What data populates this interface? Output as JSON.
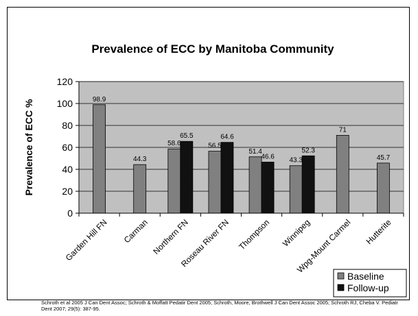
{
  "chart_data": {
    "type": "bar",
    "title": "Prevalence of ECC by Manitoba Community",
    "ylabel": "Prevalence of ECC %",
    "xlabel": "",
    "ylim": [
      0,
      120
    ],
    "yticks": [
      0,
      20,
      40,
      60,
      80,
      100,
      120
    ],
    "grid": true,
    "legend_position": "bottom-right",
    "categories": [
      "Garden Hill FN",
      "Carman",
      "Northern FN",
      "Roseau River FN",
      "Thompson",
      "Winnipeg",
      "Wpg-Mount Carmel",
      "Hutterite"
    ],
    "series": [
      {
        "name": "Baseline",
        "color": "#808080",
        "values": [
          98.9,
          44.3,
          58.6,
          56.5,
          51.4,
          43.3,
          71,
          45.7
        ],
        "labels": [
          "98.9",
          "44.3",
          "58.6",
          "56.5",
          "51.4",
          "43.3",
          "71",
          "45.7"
        ]
      },
      {
        "name": "Follow-up",
        "color": "#111111",
        "values": [
          null,
          null,
          65.5,
          64.6,
          46.6,
          52.3,
          null,
          null
        ],
        "labels": [
          "",
          "",
          "65.5",
          "64.6",
          "46.6",
          "52.3",
          "",
          ""
        ]
      }
    ]
  },
  "citation": "Schroth et al 2005 J Can Dent Assoc; Schroth & Moffatt Pedatir Dent 2005; Schroth, Moore, Brothwell J Can Dent Assoc 2005; Schroth RJ, Cheba V. Pediatr Dent 2007; 29(5): 387-95."
}
